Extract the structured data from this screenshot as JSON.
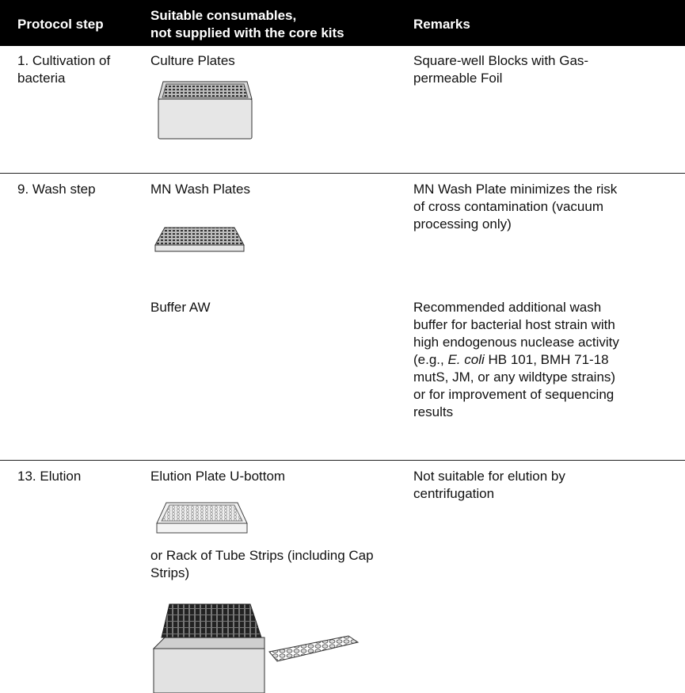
{
  "table": {
    "header": [
      "Protocol step",
      [
        "Suitable consumables,",
        "not supplied with the core kits"
      ],
      "Remarks"
    ],
    "rows": [
      {
        "step": "1. Cultivation of bacteria",
        "items": [
          {
            "name": "Culture Plates",
            "remark": "Square-well Blocks with Gas-permeable Foil"
          }
        ]
      },
      {
        "step": "9. Wash step",
        "items": [
          {
            "name": "MN Wash Plates",
            "remark": "MN Wash Plate minimizes the risk of cross contamination (vacuum processing only)"
          },
          {
            "name": "Buffer AW",
            "remark": [
              "Recommended additional wash buffer for bacterial host strain with high endogenous nuclease activity (e.g., ",
              "E. coli",
              " HB 101, BMH 71-18 mutS, JM, or any wildtype strains) or for improvement of sequencing results"
            ]
          }
        ]
      },
      {
        "step": "13. Elution",
        "items": [
          {
            "name": "Elution Plate U-bottom",
            "remark": "Not suitable for elution by centrifugation"
          },
          {
            "name": "or Rack of Tube Strips (including Cap Strips)"
          }
        ]
      }
    ]
  }
}
